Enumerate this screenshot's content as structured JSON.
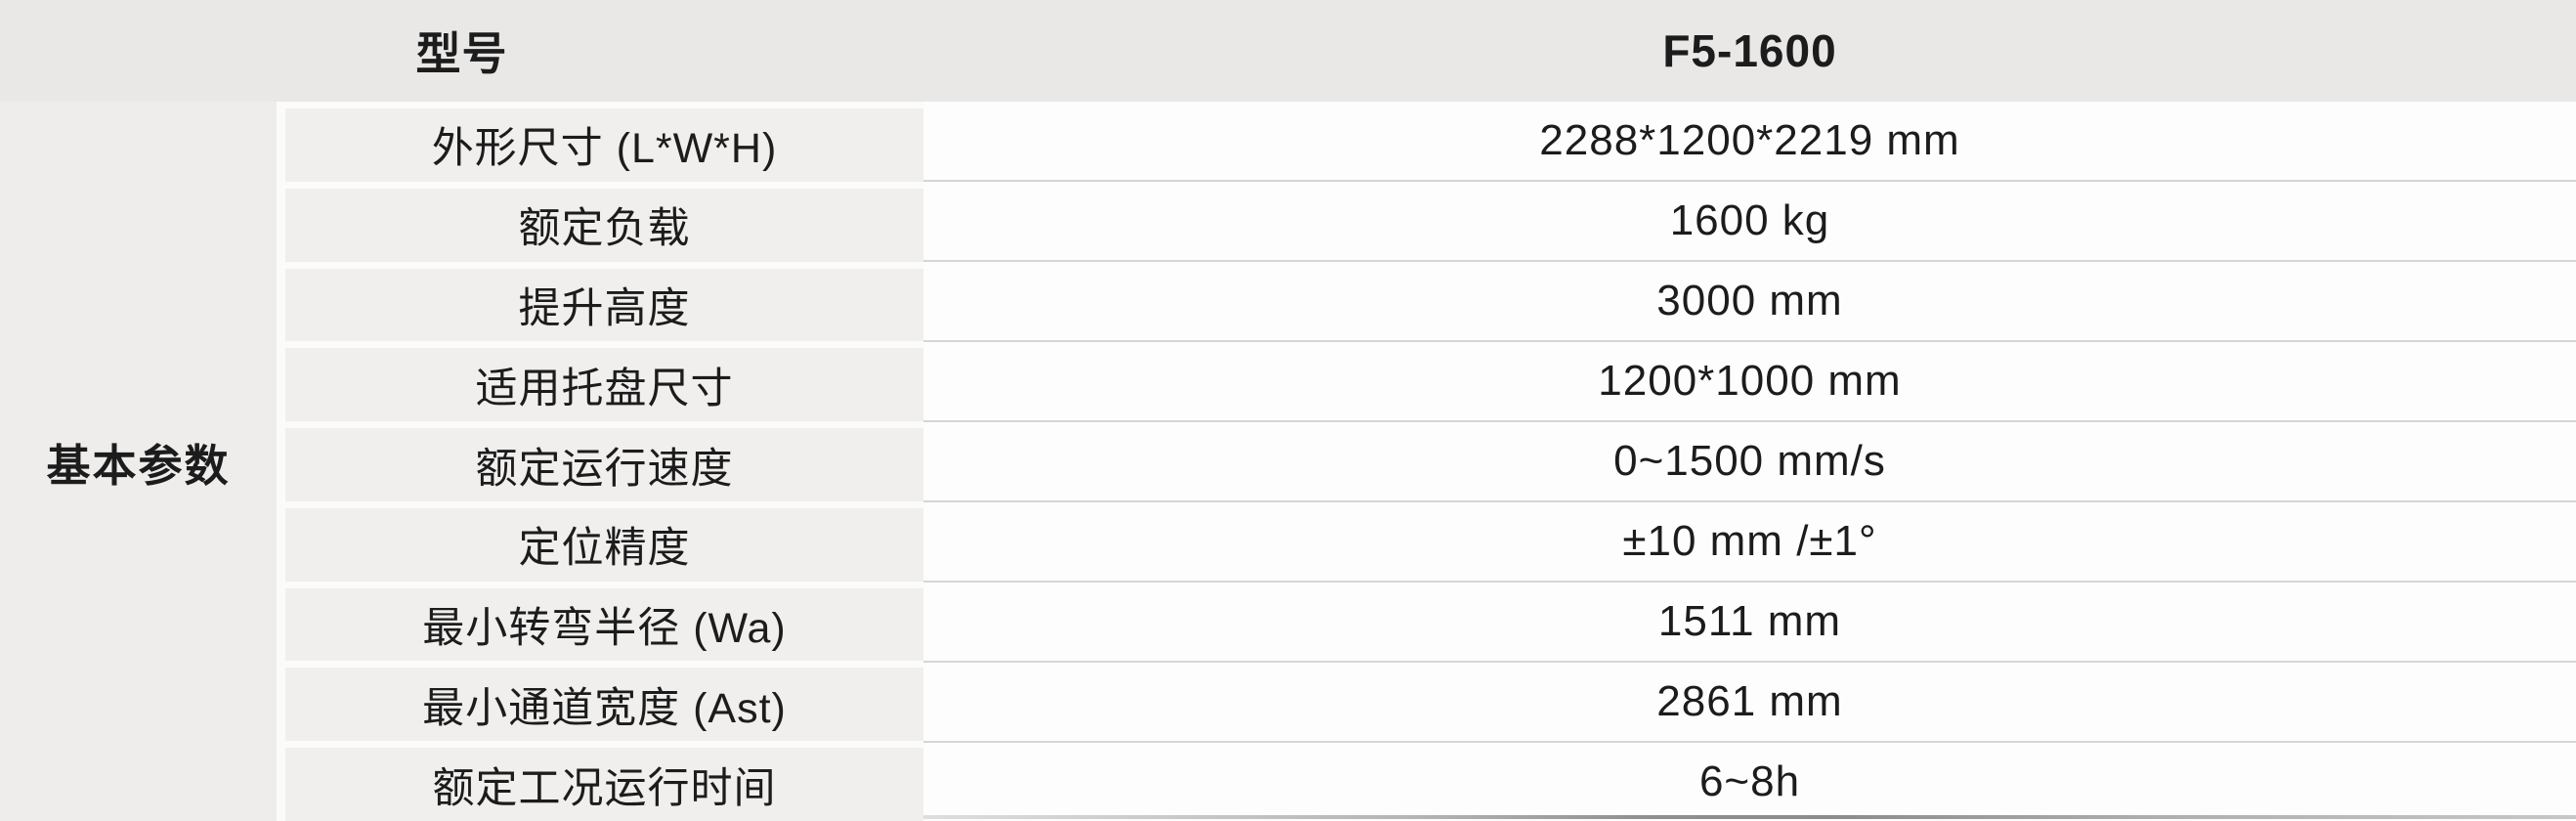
{
  "table": {
    "section_label": "基本参数",
    "header": {
      "param_label": "型号",
      "value_label": "F5-1600"
    },
    "rows": [
      {
        "label": "外形尺寸 (L*W*H)",
        "value": "2288*1200*2219 mm"
      },
      {
        "label": "额定负载",
        "value": "1600 kg"
      },
      {
        "label": "提升高度",
        "value": "3000 mm"
      },
      {
        "label": "适用托盘尺寸",
        "value": "1200*1000 mm"
      },
      {
        "label": "额定运行速度",
        "value": "0~1500 mm/s"
      },
      {
        "label": "定位精度",
        "value": "±10 mm /±1°"
      },
      {
        "label": "最小转弯半径 (Wa)",
        "value": "1511 mm"
      },
      {
        "label": "最小通道宽度 (Ast)",
        "value": "2861 mm"
      },
      {
        "label": "额定工况运行时间",
        "value": "6~8h"
      }
    ],
    "colors": {
      "header_bg": "#e9e8e7",
      "section_bg": "#eeedec",
      "cell_bg": "#f0efee",
      "value_bg": "#fdfdfd",
      "gap": "#fbfbfa",
      "separator": "#d6d5d4",
      "text": "#1c1c1c",
      "bottom_line": "#8d8c8b"
    }
  }
}
